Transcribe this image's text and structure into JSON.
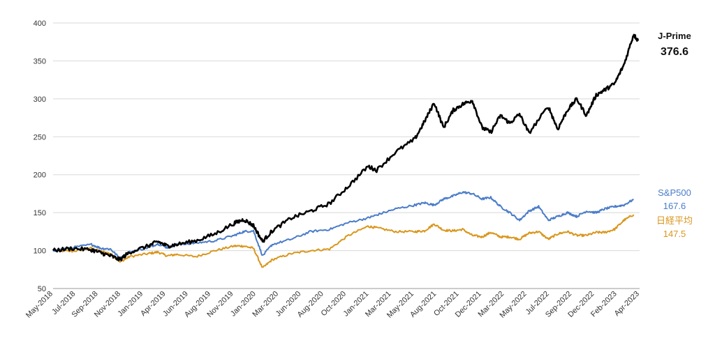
{
  "chart_data": {
    "type": "line",
    "title": "",
    "xlabel": "",
    "ylabel": "",
    "ylim": [
      50,
      400
    ],
    "y_ticks": [
      50,
      100,
      150,
      200,
      250,
      300,
      350,
      400
    ],
    "grid": true,
    "legend": "end-labels-right",
    "x_tick_labels": [
      "May-2018",
      "Jul-2018",
      "Sep-2018",
      "Nov-2018",
      "Jan-2019",
      "Apr-2019",
      "Jun-2019",
      "Aug-2019",
      "Nov-2019",
      "Jan-2020",
      "Mar-2020",
      "Jun-2020",
      "Aug-2020",
      "Oct-2020",
      "Jan-2021",
      "Mar-2021",
      "May-2021",
      "Aug-2021",
      "Oct-2021",
      "Dec-2021",
      "Mar-2022",
      "May-2022",
      "Jul-2022",
      "Sep-2022",
      "Dec-2022",
      "Feb-2023",
      "Apr-2023"
    ],
    "series": [
      {
        "name": "J-Prime",
        "end_value_label": "376.6",
        "color": "#000000",
        "points": [
          [
            "2018-05",
            100
          ],
          [
            "2018-07",
            103
          ],
          [
            "2018-09",
            101
          ],
          [
            "2018-10",
            97
          ],
          [
            "2018-11",
            93
          ],
          [
            "2018-12",
            88
          ],
          [
            "2019-01",
            98
          ],
          [
            "2019-03",
            106
          ],
          [
            "2019-04",
            112
          ],
          [
            "2019-05",
            106
          ],
          [
            "2019-06",
            108
          ],
          [
            "2019-08",
            113
          ],
          [
            "2019-10",
            122
          ],
          [
            "2019-12",
            136
          ],
          [
            "2020-01",
            141
          ],
          [
            "2020-02",
            133
          ],
          [
            "2020-03",
            112
          ],
          [
            "2020-04",
            126
          ],
          [
            "2020-06",
            143
          ],
          [
            "2020-08",
            152
          ],
          [
            "2020-10",
            162
          ],
          [
            "2020-12",
            185
          ],
          [
            "2021-02",
            211
          ],
          [
            "2021-03",
            206
          ],
          [
            "2021-05",
            230
          ],
          [
            "2021-07",
            247
          ],
          [
            "2021-08",
            270
          ],
          [
            "2021-09",
            295
          ],
          [
            "2021-10",
            262
          ],
          [
            "2021-11",
            285
          ],
          [
            "2021-12",
            293
          ],
          [
            "2022-01",
            298
          ],
          [
            "2022-02",
            262
          ],
          [
            "2022-03",
            256
          ],
          [
            "2022-04",
            278
          ],
          [
            "2022-05",
            268
          ],
          [
            "2022-06",
            280
          ],
          [
            "2022-07",
            255
          ],
          [
            "2022-09",
            290
          ],
          [
            "2022-10",
            260
          ],
          [
            "2022-11",
            285
          ],
          [
            "2022-12",
            300
          ],
          [
            "2023-01",
            278
          ],
          [
            "2023-02",
            305
          ],
          [
            "2023-03",
            312
          ],
          [
            "2023-04",
            320
          ],
          [
            "2023-05",
            345
          ],
          [
            "2023-06",
            385
          ],
          [
            "2023-06-15",
            376.6
          ]
        ]
      },
      {
        "name": "S&P500",
        "end_value_label": "167.6",
        "color": "#4a7cc9",
        "points": [
          [
            "2018-05",
            100
          ],
          [
            "2018-07",
            104
          ],
          [
            "2018-09",
            108
          ],
          [
            "2018-10",
            103
          ],
          [
            "2018-11",
            102
          ],
          [
            "2018-12",
            90
          ],
          [
            "2019-01",
            98
          ],
          [
            "2019-03",
            104
          ],
          [
            "2019-04",
            109
          ],
          [
            "2019-05",
            104
          ],
          [
            "2019-06",
            108
          ],
          [
            "2019-08",
            110
          ],
          [
            "2019-10",
            113
          ],
          [
            "2019-12",
            120
          ],
          [
            "2020-01",
            125
          ],
          [
            "2020-02",
            126
          ],
          [
            "2020-03",
            93
          ],
          [
            "2020-04",
            108
          ],
          [
            "2020-06",
            115
          ],
          [
            "2020-08",
            125
          ],
          [
            "2020-10",
            128
          ],
          [
            "2020-12",
            137
          ],
          [
            "2021-02",
            143
          ],
          [
            "2021-03",
            147
          ],
          [
            "2021-05",
            155
          ],
          [
            "2021-07",
            160
          ],
          [
            "2021-08",
            163
          ],
          [
            "2021-09",
            160
          ],
          [
            "2021-10",
            168
          ],
          [
            "2021-11",
            172
          ],
          [
            "2021-12",
            177
          ],
          [
            "2022-01",
            175
          ],
          [
            "2022-02",
            168
          ],
          [
            "2022-03",
            170
          ],
          [
            "2022-04",
            158
          ],
          [
            "2022-05",
            150
          ],
          [
            "2022-06",
            140
          ],
          [
            "2022-07",
            152
          ],
          [
            "2022-08",
            158
          ],
          [
            "2022-09",
            140
          ],
          [
            "2022-10",
            145
          ],
          [
            "2022-11",
            150
          ],
          [
            "2022-12",
            145
          ],
          [
            "2023-01",
            152
          ],
          [
            "2023-02",
            150
          ],
          [
            "2023-03",
            155
          ],
          [
            "2023-04",
            158
          ],
          [
            "2023-05",
            160
          ],
          [
            "2023-06",
            167.6
          ]
        ]
      },
      {
        "name": "日経平均",
        "end_value_label": "147.5",
        "color": "#d9961c",
        "points": [
          [
            "2018-05",
            100
          ],
          [
            "2018-07",
            99
          ],
          [
            "2018-09",
            103
          ],
          [
            "2018-10",
            99
          ],
          [
            "2018-11",
            96
          ],
          [
            "2018-12",
            85
          ],
          [
            "2019-01",
            92
          ],
          [
            "2019-03",
            96
          ],
          [
            "2019-04",
            98
          ],
          [
            "2019-05",
            93
          ],
          [
            "2019-06",
            95
          ],
          [
            "2019-08",
            92
          ],
          [
            "2019-10",
            100
          ],
          [
            "2019-12",
            106
          ],
          [
            "2020-01",
            106
          ],
          [
            "2020-02",
            103
          ],
          [
            "2020-03",
            77
          ],
          [
            "2020-04",
            88
          ],
          [
            "2020-06",
            96
          ],
          [
            "2020-08",
            100
          ],
          [
            "2020-10",
            102
          ],
          [
            "2020-12",
            120
          ],
          [
            "2021-02",
            132
          ],
          [
            "2021-03",
            130
          ],
          [
            "2021-05",
            125
          ],
          [
            "2021-07",
            125
          ],
          [
            "2021-08",
            126
          ],
          [
            "2021-09",
            135
          ],
          [
            "2021-10",
            127
          ],
          [
            "2021-11",
            126
          ],
          [
            "2021-12",
            128
          ],
          [
            "2022-01",
            120
          ],
          [
            "2022-02",
            118
          ],
          [
            "2022-03",
            124
          ],
          [
            "2022-04",
            118
          ],
          [
            "2022-05",
            118
          ],
          [
            "2022-06",
            115
          ],
          [
            "2022-07",
            123
          ],
          [
            "2022-08",
            125
          ],
          [
            "2022-09",
            115
          ],
          [
            "2022-10",
            122
          ],
          [
            "2022-11",
            125
          ],
          [
            "2022-12",
            120
          ],
          [
            "2023-01",
            120
          ],
          [
            "2023-02",
            124
          ],
          [
            "2023-03",
            124
          ],
          [
            "2023-04",
            128
          ],
          [
            "2023-05",
            140
          ],
          [
            "2023-06",
            147.5
          ]
        ]
      }
    ]
  }
}
